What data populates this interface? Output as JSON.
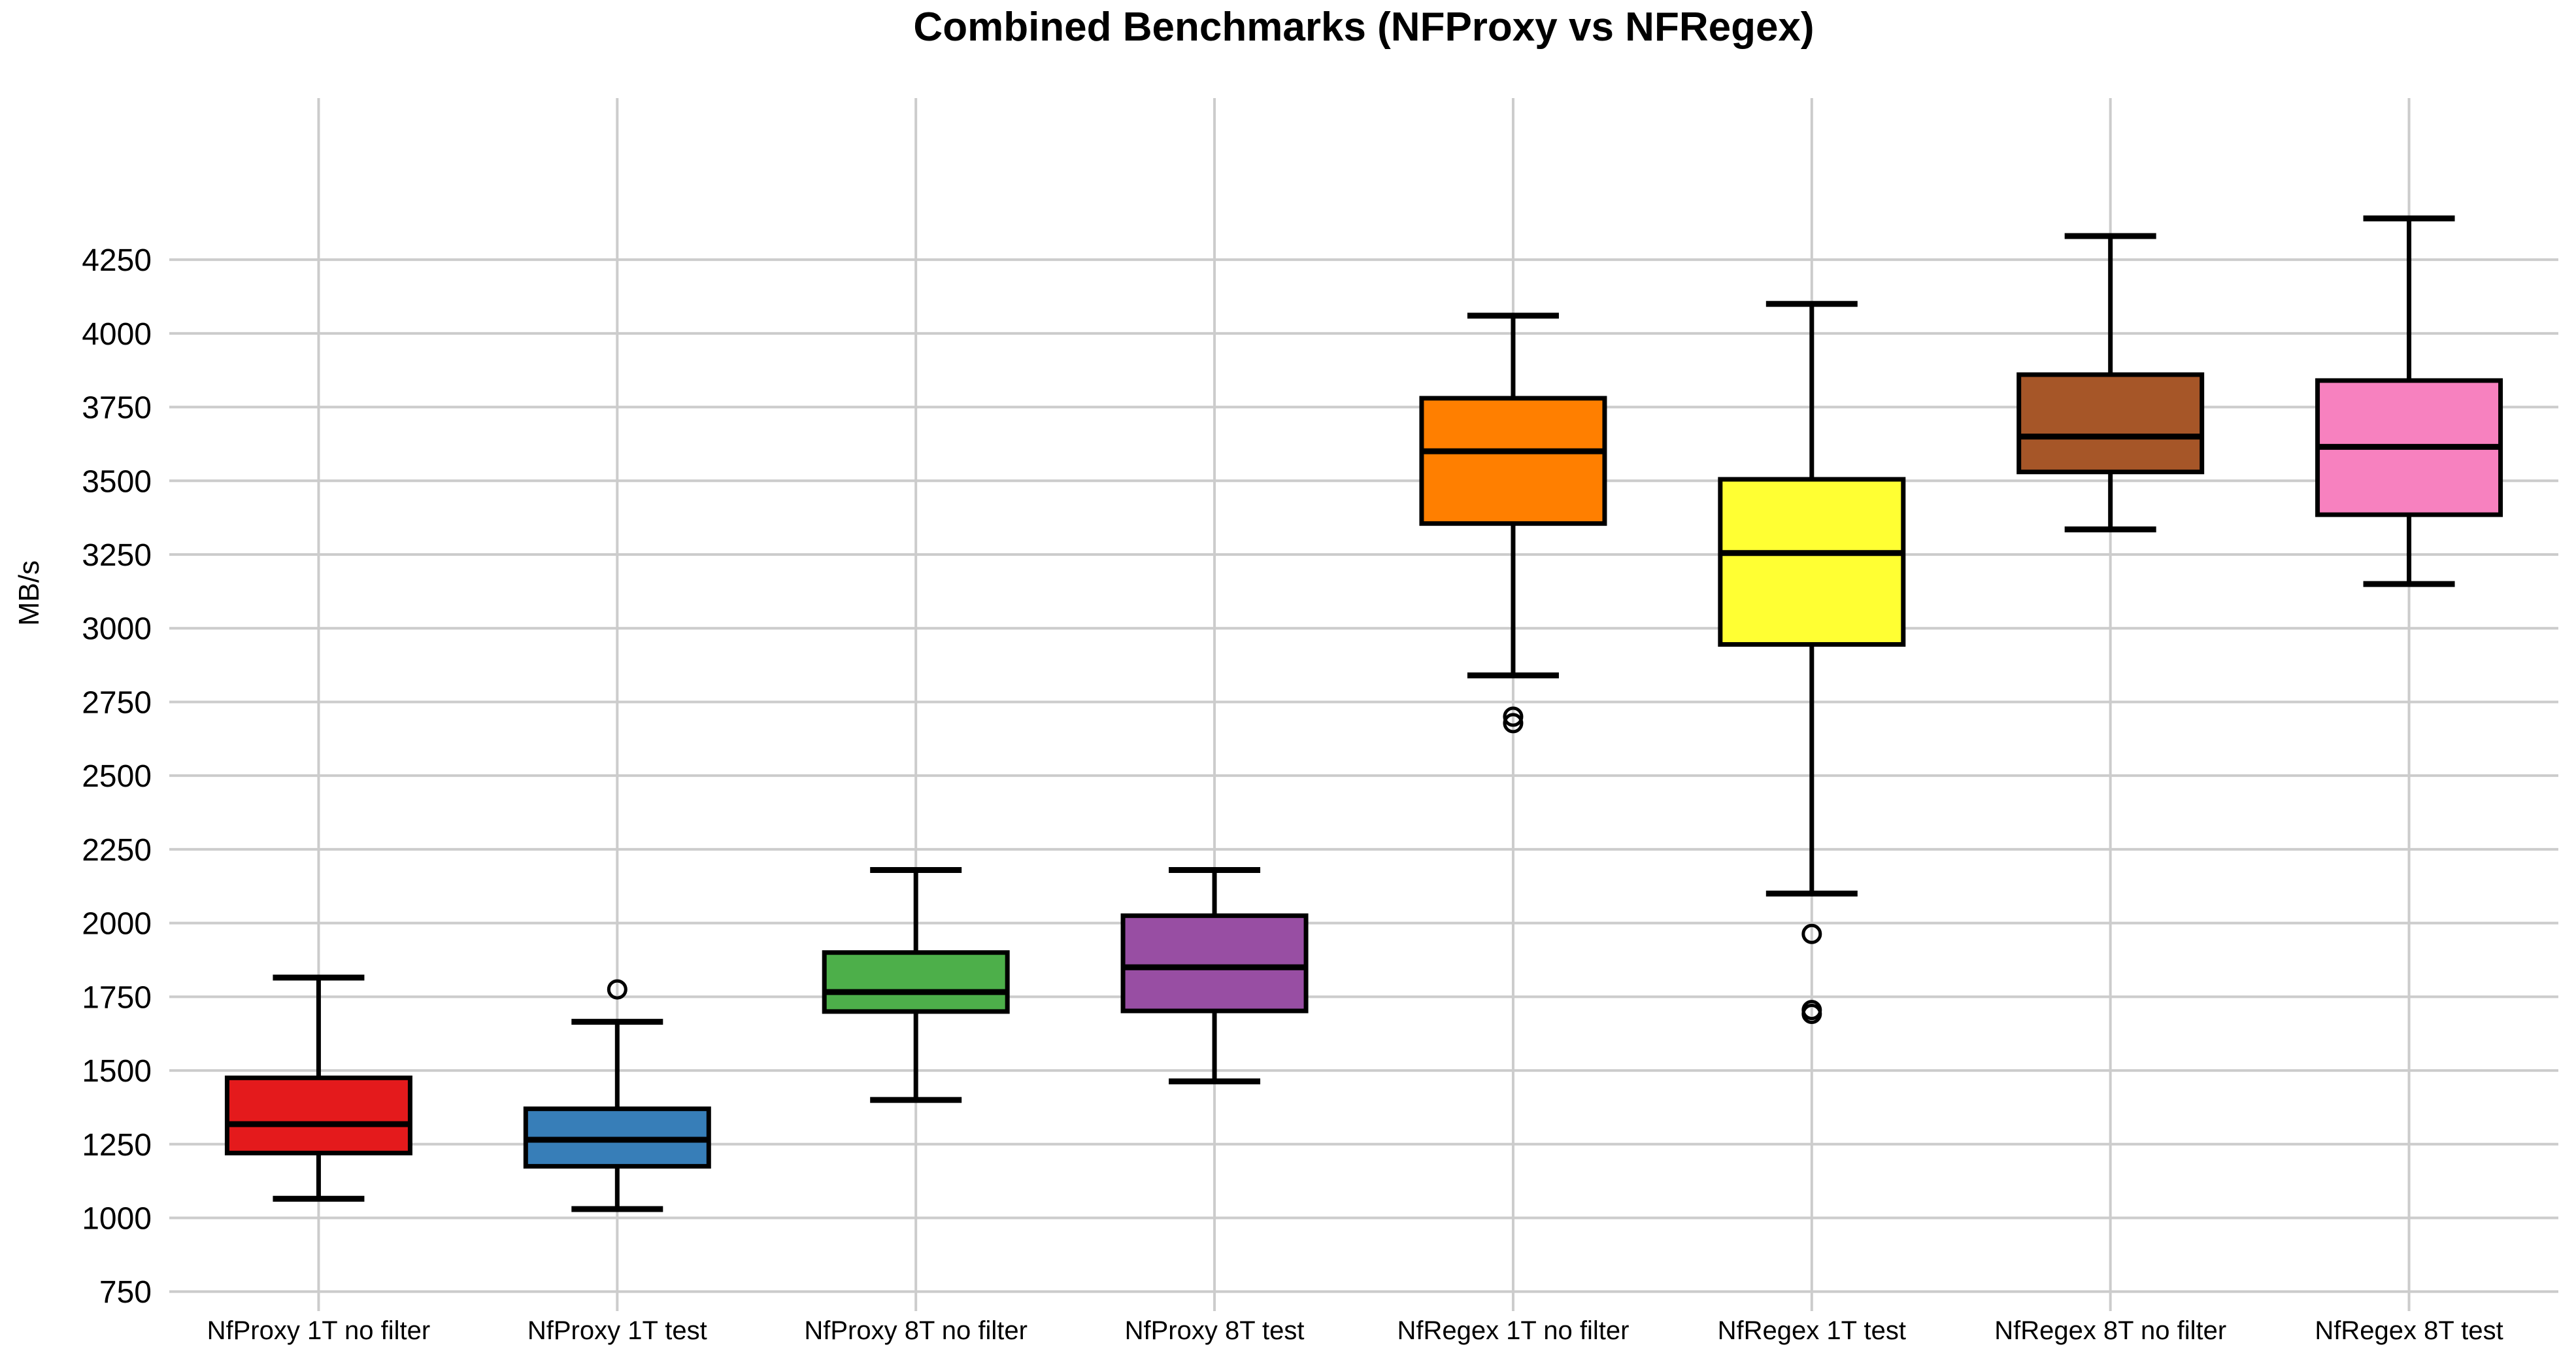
{
  "chart_data": {
    "type": "boxplot",
    "title": "Combined Benchmarks (NFProxy vs NFRegex)",
    "xlabel": "",
    "ylabel": "MB/s",
    "y_ticks": [
      750,
      1000,
      1250,
      1500,
      1750,
      2000,
      2250,
      2500,
      2750,
      3000,
      3250,
      3500,
      3750,
      4000,
      4250
    ],
    "ylim": [
      684,
      4798
    ],
    "grid": true,
    "legend": "none",
    "categories": [
      "NfProxy 1T no filter",
      "NfProxy 1T test",
      "NfProxy 8T no filter",
      "NfProxy 8T test",
      "NfRegex 1T no filter",
      "NfRegex 1T test",
      "NfRegex 8T no filter",
      "NfRegex 8T test"
    ],
    "series": [
      {
        "label": "NfProxy 1T no filter",
        "color": "#e41a1c",
        "whisker_low": 1065,
        "q1": 1220,
        "median": 1318,
        "q3": 1475,
        "whisker_high": 1815,
        "outliers": []
      },
      {
        "label": "NfProxy 1T test",
        "color": "#377eb8",
        "whisker_low": 1030,
        "q1": 1175,
        "median": 1265,
        "q3": 1370,
        "whisker_high": 1665,
        "outliers": [
          1775
        ]
      },
      {
        "label": "NfProxy 8T no filter",
        "color": "#4daf4a",
        "whisker_low": 1400,
        "q1": 1700,
        "median": 1766,
        "q3": 1900,
        "whisker_high": 2180,
        "outliers": []
      },
      {
        "label": "NfProxy 8T test",
        "color": "#984ea3",
        "whisker_low": 1463,
        "q1": 1702,
        "median": 1850,
        "q3": 2025,
        "whisker_high": 2180,
        "outliers": []
      },
      {
        "label": "NfRegex 1T no filter",
        "color": "#ff7f00",
        "whisker_low": 2840,
        "q1": 3355,
        "median": 3600,
        "q3": 3780,
        "whisker_high": 4060,
        "outliers": [
          2700,
          2678
        ]
      },
      {
        "label": "NfRegex 1T test",
        "color": "#ffff33",
        "whisker_low": 2100,
        "q1": 2945,
        "median": 3255,
        "q3": 3505,
        "whisker_high": 4100,
        "outliers": [
          1963,
          1705,
          1692
        ]
      },
      {
        "label": "NfRegex 8T no filter",
        "color": "#a65628",
        "whisker_low": 3335,
        "q1": 3530,
        "median": 3650,
        "q3": 3860,
        "whisker_high": 4330,
        "outliers": []
      },
      {
        "label": "NfRegex 8T test",
        "color": "#f781bf",
        "whisker_low": 3150,
        "q1": 3385,
        "median": 3615,
        "q3": 3840,
        "whisker_high": 4390,
        "outliers": []
      }
    ],
    "style": {
      "grid_color": "#cccccc",
      "box_border_color": "#000000",
      "background": "#ffffff"
    }
  }
}
